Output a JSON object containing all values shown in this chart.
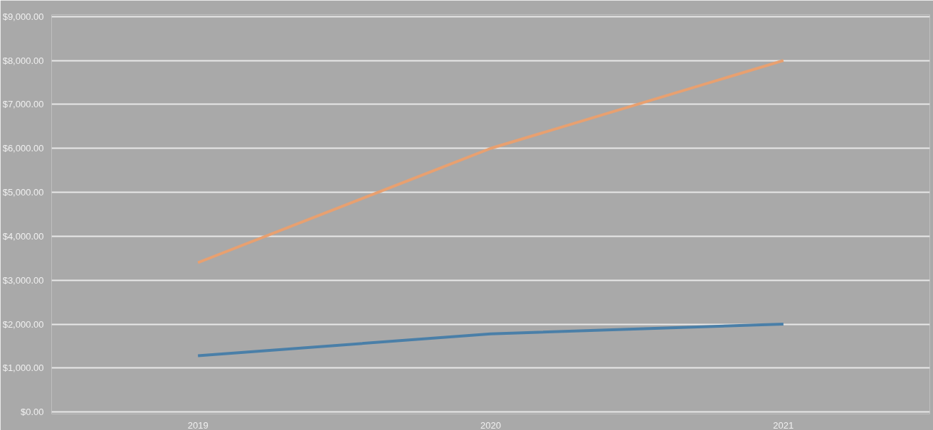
{
  "chart_data": {
    "type": "line",
    "categories": [
      "2019",
      "2020",
      "2021"
    ],
    "series": [
      {
        "color": "#4a7fa8",
        "values": [
          1280,
          1780,
          2000
        ]
      },
      {
        "color": "#e8a070",
        "values": [
          3400,
          6000,
          8000
        ]
      }
    ],
    "ylim": [
      0,
      9000
    ],
    "yticks": [
      {
        "value": 0,
        "label": "$0.00"
      },
      {
        "value": 1000,
        "label": "$1,000.00"
      },
      {
        "value": 2000,
        "label": "$2,000.00"
      },
      {
        "value": 3000,
        "label": "$3,000.00"
      },
      {
        "value": 4000,
        "label": "$4,000.00"
      },
      {
        "value": 5000,
        "label": "$5,000.00"
      },
      {
        "value": 6000,
        "label": "$6,000.00"
      },
      {
        "value": 7000,
        "label": "$7,000.00"
      },
      {
        "value": 8000,
        "label": "$8,000.00"
      },
      {
        "value": 9000,
        "label": "$9,000.00"
      }
    ],
    "grid": "y",
    "marker": "none",
    "line_style": "solid"
  }
}
